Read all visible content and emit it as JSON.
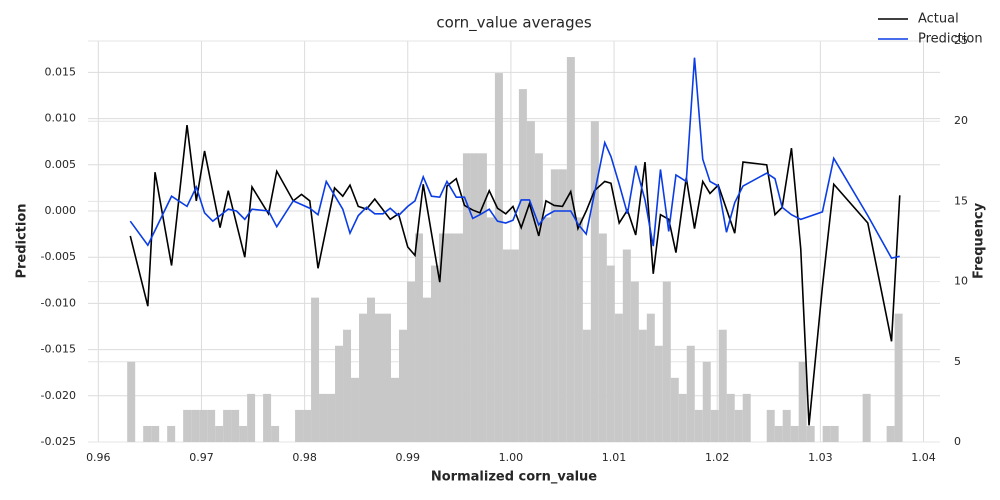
{
  "chart_data": {
    "type": "line",
    "title": "corn_value averages",
    "xlabel": "Normalized corn_value",
    "ylabel": "Prediction",
    "y2label": "Frequency",
    "xlim": [
      0.959,
      1.0416
    ],
    "ylim": [
      -0.025,
      0.0184
    ],
    "y2lim": [
      0,
      25
    ],
    "xticks": [
      0.96,
      0.97,
      0.98,
      0.99,
      {
        "value": 1.0,
        "label": "1.00"
      },
      1.01,
      1.02,
      1.03,
      1.04
    ],
    "yticks": [
      -0.025,
      {
        "value": -0.02,
        "label": "-0.020"
      },
      -0.015,
      {
        "value": -0.01,
        "label": "-0.010"
      },
      -0.005,
      {
        "value": 0,
        "label": "0.000"
      },
      0.005,
      {
        "value": 0.01,
        "label": "0.010"
      },
      0.015
    ],
    "y2ticks": [
      0,
      5,
      10,
      15,
      20,
      25
    ],
    "grid": true,
    "legend": "upper right",
    "histogram": {
      "type": "histogram",
      "axis": "y2",
      "color": "#c8c8c8",
      "bins": [
        0.9628,
        0.963575,
        0.96435,
        0.965125,
        0.9659,
        0.966675,
        0.96745,
        0.968225,
        0.969,
        0.969775,
        0.97055,
        0.971325,
        0.9721,
        0.972875,
        0.97365,
        0.974425,
        0.9752,
        0.975975,
        0.97675,
        0.977525,
        0.9783,
        0.979075,
        0.97985,
        0.980625,
        0.9814,
        0.982175,
        0.98295,
        0.983725,
        0.9845,
        0.985275,
        0.98605,
        0.986825,
        0.9876,
        0.988375,
        0.98915,
        0.989925,
        0.9907,
        0.991475,
        0.99225,
        0.993025,
        0.9938,
        0.994575,
        0.99535,
        0.996125,
        0.9969,
        0.997675,
        0.99845,
        0.999225,
        1.0,
        1.000775,
        1.00155,
        1.002325,
        1.0031,
        1.003875,
        1.00465,
        1.005425,
        1.0062,
        1.006975,
        1.00775,
        1.008525,
        1.0093,
        1.010075,
        1.01085,
        1.011625,
        1.0124,
        1.013175,
        1.01395,
        1.014725,
        1.0155,
        1.016275,
        1.01705,
        1.017825,
        1.0186,
        1.019375,
        1.02015,
        1.020925,
        1.0217,
        1.022475,
        1.02325,
        1.024025,
        1.0248,
        1.025575,
        1.02635,
        1.027125,
        1.0279,
        1.028675,
        1.02945,
        1.030225,
        1.031,
        1.031775,
        1.03255,
        1.033325,
        1.0341,
        1.034875,
        1.03565,
        1.036425,
        1.0372,
        1.037975
      ],
      "values": [
        5,
        0,
        1,
        1,
        0,
        1,
        0,
        2,
        2,
        2,
        2,
        1,
        2,
        2,
        1,
        3,
        0,
        3,
        1,
        0,
        0,
        2,
        2,
        9,
        3,
        3,
        6,
        7,
        4,
        8,
        9,
        8,
        8,
        4,
        7,
        10,
        13,
        9,
        11,
        13,
        13,
        13,
        18,
        18,
        18,
        14,
        23,
        12,
        12,
        22,
        20,
        18,
        14,
        17,
        17,
        24,
        14,
        7,
        20,
        13,
        11,
        8,
        12,
        10,
        7,
        8,
        6,
        10,
        4,
        3,
        6,
        2,
        5,
        2,
        7,
        3,
        2,
        3,
        0,
        0,
        2,
        1,
        2,
        1,
        5,
        1,
        0,
        1,
        1,
        0,
        0,
        0,
        3,
        0,
        0,
        1,
        8
      ]
    },
    "series": [
      {
        "name": "Actual",
        "color": "#000000",
        "x": [
          0.9631,
          0.9648,
          0.9655,
          0.9671,
          0.9686,
          0.9695,
          0.9703,
          0.9718,
          0.9726,
          0.9742,
          0.9749,
          0.9765,
          0.9773,
          0.9789,
          0.9797,
          0.9805,
          0.9813,
          0.9829,
          0.9837,
          0.9844,
          0.9852,
          0.986,
          0.9868,
          0.9883,
          0.9891,
          0.99,
          0.9907,
          0.9915,
          0.9931,
          0.9938,
          0.9947,
          0.9955,
          0.9963,
          0.997,
          0.9979,
          0.9987,
          0.9995,
          1.0002,
          1.001,
          1.0018,
          1.0027,
          1.0034,
          1.0042,
          1.005,
          1.0058,
          1.0065,
          1.0073,
          1.0081,
          1.0091,
          1.0097,
          1.0105,
          1.0113,
          1.0121,
          1.013,
          1.0138,
          1.0145,
          1.0153,
          1.016,
          1.017,
          1.0178,
          1.0186,
          1.0193,
          1.0201,
          1.0217,
          1.0225,
          1.0248,
          1.0256,
          1.0263,
          1.0272,
          1.0281,
          1.0289,
          1.0302,
          1.0313,
          1.0346,
          1.0369,
          1.0377
        ],
        "values": [
          -0.0027,
          -0.0103,
          0.0042,
          -0.0059,
          0.0093,
          0.0011,
          0.0065,
          -0.0018,
          0.0022,
          -0.005,
          0.0026,
          -0.0003,
          0.0043,
          0.0011,
          0.0018,
          0.0011,
          -0.0062,
          0.0025,
          0.0016,
          0.0028,
          0.0005,
          0.0002,
          0.0013,
          -0.0009,
          -0.0003,
          -0.0039,
          -0.0048,
          0.0029,
          -0.0077,
          0.0027,
          0.0035,
          0.0006,
          0.0001,
          -0.0002,
          0.0022,
          0.0003,
          -0.0003,
          0.0005,
          -0.0018,
          0.0008,
          -0.0027,
          0.0011,
          0.0006,
          0.0005,
          0.0021,
          -0.0019,
          0,
          0.0022,
          0.0032,
          0.003,
          -0.0013,
          0.0001,
          -0.0026,
          0.0053,
          -0.0068,
          -0.0004,
          -0.0009,
          -0.0045,
          0.0036,
          -0.0019,
          0.0032,
          0.0019,
          0.0028,
          -0.0024,
          0.0053,
          0.005,
          -0.0004,
          0.0004,
          0.0068,
          -0.0041,
          -0.0232,
          -0.0082,
          0.0029,
          -0.0013,
          -0.0141,
          0.0017
        ]
      },
      {
        "name": "Prediction",
        "color": "#0b3de6",
        "x": [
          0.9631,
          0.9648,
          0.9655,
          0.9671,
          0.9686,
          0.9695,
          0.9703,
          0.9711,
          0.9726,
          0.9734,
          0.9742,
          0.9749,
          0.9765,
          0.9773,
          0.9789,
          0.9805,
          0.9813,
          0.9821,
          0.9837,
          0.9844,
          0.9852,
          0.986,
          0.9868,
          0.9876,
          0.9883,
          0.9891,
          0.99,
          0.9907,
          0.9915,
          0.9923,
          0.9931,
          0.9938,
          0.9947,
          0.9955,
          0.9963,
          0.997,
          0.9979,
          0.9987,
          0.9995,
          1.0002,
          1.001,
          1.0018,
          1.0027,
          1.0034,
          1.0042,
          1.005,
          1.0058,
          1.0065,
          1.0073,
          1.0081,
          1.0091,
          1.0097,
          1.0105,
          1.0113,
          1.0121,
          1.013,
          1.0138,
          1.0145,
          1.0153,
          1.016,
          1.017,
          1.0178,
          1.0186,
          1.0193,
          1.0201,
          1.0209,
          1.0217,
          1.0225,
          1.0248,
          1.0256,
          1.0263,
          1.0272,
          1.0281,
          1.0302,
          1.0313,
          1.0346,
          1.0369,
          1.0377
        ],
        "values": [
          -0.0011,
          -0.0037,
          -0.0021,
          0.0016,
          0.0005,
          0.0026,
          -0.0002,
          -0.0011,
          0.0002,
          0,
          -0.0009,
          0.0002,
          0,
          -0.0017,
          0.0011,
          0.0003,
          -0.0004,
          0.0032,
          0.0002,
          -0.0024,
          -0.0005,
          0.0004,
          -0.0003,
          -0.0003,
          0.0003,
          -0.0005,
          0.0005,
          0.0011,
          0.0037,
          0.0016,
          0.0015,
          0.0032,
          0.0015,
          0.0015,
          -0.0008,
          -0.0004,
          0.0002,
          -0.0011,
          -0.0013,
          -0.001,
          0.0012,
          0.0012,
          -0.0015,
          -0.0005,
          0,
          0,
          0,
          -0.0014,
          -0.0025,
          0.0019,
          0.0074,
          0.0059,
          0.0029,
          -0.0003,
          0.0049,
          0.0012,
          -0.0038,
          0.0045,
          -0.0022,
          0.0039,
          0.0032,
          0.0166,
          0.0056,
          0.0032,
          0.0027,
          -0.0023,
          0.0009,
          0.0027,
          0.0041,
          0.0035,
          0.0004,
          -0.0004,
          -0.0009,
          -0.0001,
          0.0057,
          -0.0005,
          -0.0051,
          -0.0049
        ]
      }
    ]
  }
}
